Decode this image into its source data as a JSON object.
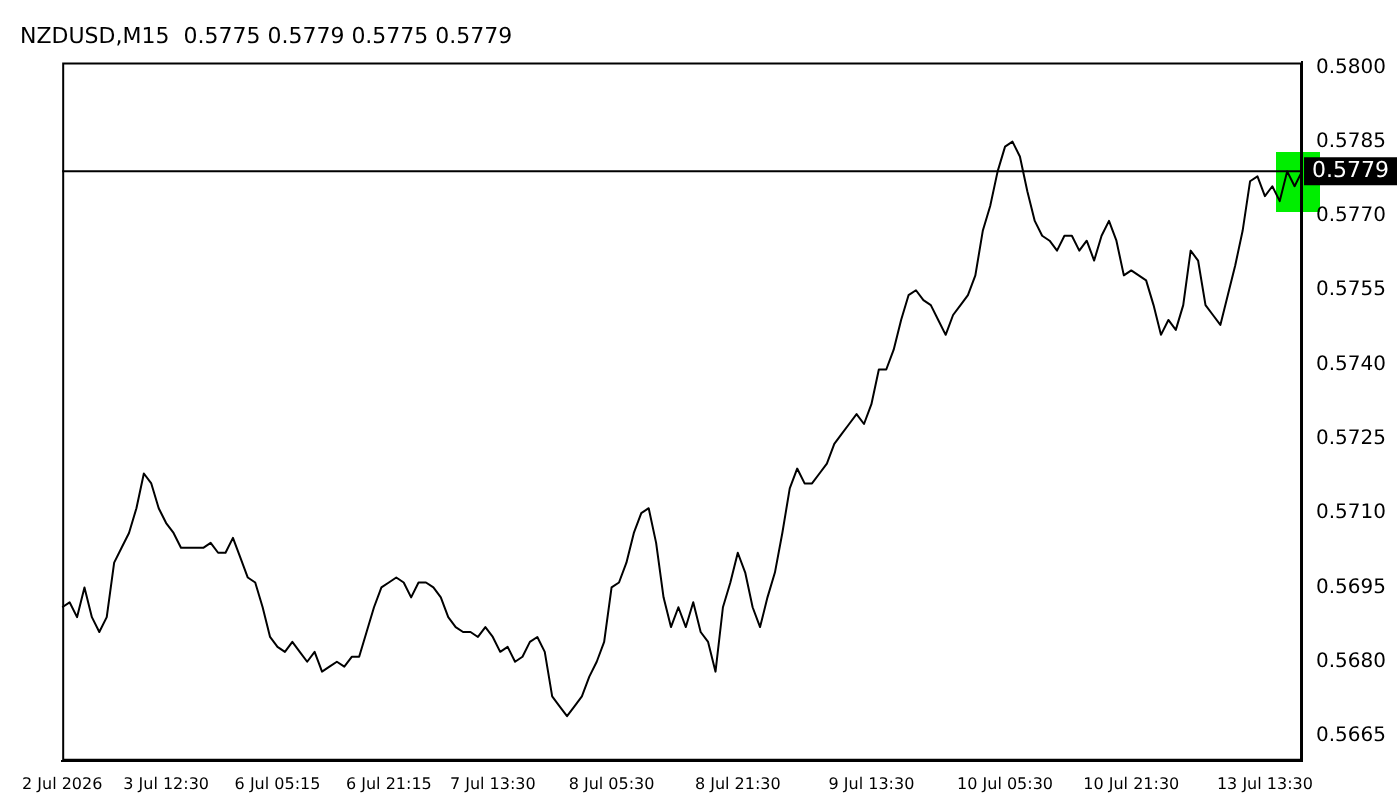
{
  "chart_data": {
    "type": "line",
    "title": "NZDUSD,M15  0.5775 0.5779 0.5775 0.5779",
    "categories": [
      "2 Jul 2026",
      null,
      null,
      null,
      null,
      null,
      null,
      null,
      null,
      null,
      null,
      null,
      null,
      null,
      "3 Jul 12:30",
      null,
      null,
      null,
      null,
      null,
      null,
      null,
      null,
      null,
      null,
      null,
      null,
      null,
      null,
      "6 Jul 05:15",
      null,
      null,
      null,
      null,
      null,
      null,
      null,
      null,
      null,
      null,
      null,
      null,
      null,
      null,
      "6 Jul 21:15",
      null,
      null,
      null,
      null,
      null,
      null,
      null,
      null,
      null,
      null,
      null,
      null,
      null,
      "7 Jul 13:30",
      null,
      null,
      null,
      null,
      null,
      null,
      null,
      null,
      null,
      null,
      null,
      null,
      null,
      null,
      null,
      "8 Jul 05:30",
      null,
      null,
      null,
      null,
      null,
      null,
      null,
      null,
      null,
      null,
      null,
      null,
      null,
      null,
      null,
      null,
      "8 Jul 21:30",
      null,
      null,
      null,
      null,
      null,
      null,
      null,
      null,
      null,
      null,
      null,
      null,
      null,
      null,
      null,
      null,
      null,
      "9 Jul 13:30",
      null,
      null,
      null,
      null,
      null,
      null,
      null,
      null,
      null,
      null,
      null,
      null,
      null,
      null,
      null,
      null,
      null,
      "10 Jul 05:30",
      null,
      null,
      null,
      null,
      null,
      null,
      null,
      null,
      null,
      null,
      null,
      null,
      null,
      null,
      null,
      null,
      "10 Jul 21:30",
      null,
      null,
      null,
      null,
      null,
      null,
      null,
      null,
      null,
      null,
      null,
      null,
      null,
      null,
      null,
      null,
      null,
      "13 Jul 13:30",
      null,
      null,
      null,
      null,
      null
    ],
    "series": [
      {
        "color": "#000000",
        "values": [
          0.5691,
          0.5692,
          0.5689,
          0.5695,
          0.5689,
          0.5686,
          0.5689,
          0.57,
          0.5703,
          0.5706,
          0.5711,
          0.5718,
          0.5716,
          0.5711,
          0.5708,
          0.5706,
          0.5703,
          0.5703,
          0.5703,
          0.5703,
          0.5704,
          0.5702,
          0.5702,
          0.5705,
          0.5701,
          0.5697,
          0.5696,
          0.5691,
          0.5685,
          0.5683,
          0.5682,
          0.5684,
          0.5682,
          0.568,
          0.5682,
          0.5678,
          0.5679,
          0.568,
          0.5679,
          0.5681,
          0.5681,
          0.5686,
          0.5691,
          0.5695,
          0.5696,
          0.5697,
          0.5696,
          0.5693,
          0.5696,
          0.5696,
          0.5695,
          0.5693,
          0.5689,
          0.5687,
          0.5686,
          0.5686,
          0.5685,
          0.5687,
          0.5685,
          0.5682,
          0.5683,
          0.568,
          0.5681,
          0.5684,
          0.5685,
          0.5682,
          0.5673,
          0.5671,
          0.5669,
          0.5671,
          0.5673,
          0.5677,
          0.568,
          0.5684,
          0.5695,
          0.5696,
          0.57,
          0.5706,
          0.571,
          0.5711,
          0.5704,
          0.5693,
          0.5687,
          0.5691,
          0.5687,
          0.5692,
          0.5686,
          0.5684,
          0.5678,
          0.5691,
          0.5696,
          0.5702,
          0.5698,
          0.5691,
          0.5687,
          0.5693,
          0.5698,
          0.5706,
          0.5715,
          0.5719,
          0.5716,
          0.5716,
          0.5718,
          0.572,
          0.5724,
          0.5726,
          0.5728,
          0.573,
          0.5728,
          0.5732,
          0.5739,
          0.5739,
          0.5743,
          0.5749,
          0.5754,
          0.5755,
          0.5753,
          0.5752,
          0.5749,
          0.5746,
          0.575,
          0.5752,
          0.5754,
          0.5758,
          0.5767,
          0.5772,
          0.5779,
          0.5784,
          0.5785,
          0.5782,
          0.5775,
          0.5769,
          0.5766,
          0.5765,
          0.5763,
          0.5766,
          0.5766,
          0.5763,
          0.5765,
          0.5761,
          0.5766,
          0.5769,
          0.5765,
          0.5758,
          0.5759,
          0.5758,
          0.5757,
          0.5752,
          0.5746,
          0.5749,
          0.5747,
          0.5752,
          0.5763,
          0.5761,
          0.5752,
          0.575,
          0.5748,
          0.5754,
          0.576,
          0.5767,
          0.5777,
          0.5778,
          0.5774,
          0.5776,
          0.5773,
          0.5779,
          0.5776,
          0.5779
        ]
      }
    ],
    "ylim": [
      0.566,
      0.5801
    ],
    "yticks": [
      {
        "value": 0.5665,
        "label": "0.5665"
      },
      {
        "value": 0.568,
        "label": "0.5680"
      },
      {
        "value": 0.5695,
        "label": "0.5695"
      },
      {
        "value": 0.571,
        "label": "0.5710"
      },
      {
        "value": 0.5725,
        "label": "0.5725"
      },
      {
        "value": 0.574,
        "label": "0.5740"
      },
      {
        "value": 0.5755,
        "label": "0.5755"
      },
      {
        "value": 0.577,
        "label": "0.5770"
      },
      {
        "value": 0.5785,
        "label": "0.5785"
      },
      {
        "value": 0.58,
        "label": "0.5800"
      }
    ],
    "ref_lines": [
      {
        "axis": "y",
        "value": 0.5779,
        "label": "0.5779",
        "color": "#000000"
      }
    ],
    "grid": false,
    "legend": false
  }
}
